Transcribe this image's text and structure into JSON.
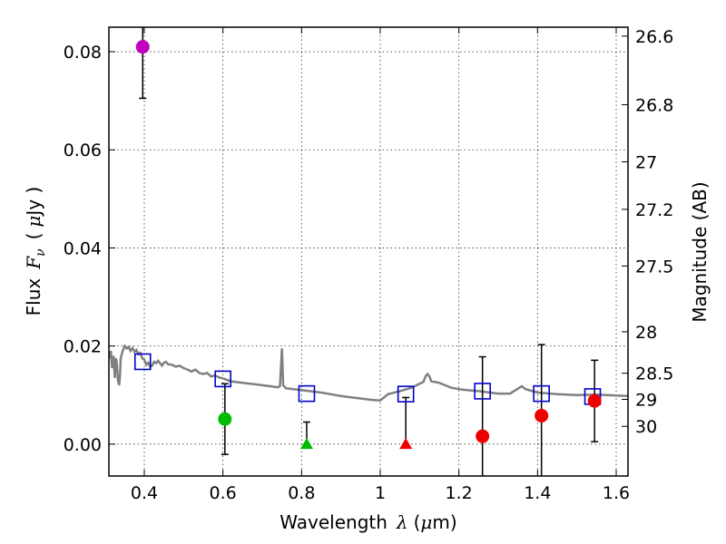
{
  "chart_data": {
    "type": "scatter",
    "xlabel": "Wavelength",
    "xlabel_symbol": "λ",
    "xlabel_unit_open": "(",
    "xlabel_unit_mu": "μ",
    "xlabel_unit_rest": "m)",
    "ylabel": "Flux",
    "ylabel_symbol": "F",
    "ylabel_subscript": "ν",
    "ylabel_unit_open": "(",
    "ylabel_unit_mu": "μ",
    "ylabel_unit_rest": "Jy )",
    "y2label": "Magnitude (AB)",
    "xlim": [
      0.31,
      1.63
    ],
    "ylim": [
      -0.0065,
      0.085
    ],
    "grid": true,
    "xticks": [
      {
        "value": 0.4,
        "label": "0.4"
      },
      {
        "value": 0.6,
        "label": "0.6"
      },
      {
        "value": 0.8,
        "label": "0.8"
      },
      {
        "value": 1.0,
        "label": "1"
      },
      {
        "value": 1.2,
        "label": "1.2"
      },
      {
        "value": 1.4,
        "label": "1.4"
      },
      {
        "value": 1.6,
        "label": "1.6"
      }
    ],
    "yticks": [
      {
        "value": 0.0,
        "label": "0.00"
      },
      {
        "value": 0.02,
        "label": "0.02"
      },
      {
        "value": 0.04,
        "label": "0.04"
      },
      {
        "value": 0.06,
        "label": "0.06"
      },
      {
        "value": 0.08,
        "label": "0.08"
      }
    ],
    "y2ticks": [
      {
        "mag": 26.6,
        "label": "26.6"
      },
      {
        "mag": 26.8,
        "label": "26.8"
      },
      {
        "mag": 27.0,
        "label": "27"
      },
      {
        "mag": 27.2,
        "label": "27.2"
      },
      {
        "mag": 27.5,
        "label": "27.5"
      },
      {
        "mag": 28.0,
        "label": "28"
      },
      {
        "mag": 28.5,
        "label": "28.5"
      },
      {
        "mag": 29.0,
        "label": "29"
      },
      {
        "mag": 30.0,
        "label": "30"
      }
    ],
    "model_spectrum": {
      "name": "model SED",
      "color": "#808080",
      "points": [
        [
          0.31,
          0.0175
        ],
        [
          0.315,
          0.019
        ],
        [
          0.318,
          0.0155
        ],
        [
          0.322,
          0.018
        ],
        [
          0.325,
          0.0135
        ],
        [
          0.328,
          0.0175
        ],
        [
          0.33,
          0.0165
        ],
        [
          0.333,
          0.013
        ],
        [
          0.336,
          0.012
        ],
        [
          0.338,
          0.0135
        ],
        [
          0.34,
          0.0175
        ],
        [
          0.345,
          0.019
        ],
        [
          0.35,
          0.02
        ],
        [
          0.355,
          0.0195
        ],
        [
          0.36,
          0.0198
        ],
        [
          0.365,
          0.019
        ],
        [
          0.37,
          0.0196
        ],
        [
          0.375,
          0.0188
        ],
        [
          0.38,
          0.0192
        ],
        [
          0.385,
          0.0183
        ],
        [
          0.39,
          0.0186
        ],
        [
          0.395,
          0.0175
        ],
        [
          0.4,
          0.0172
        ],
        [
          0.405,
          0.0162
        ],
        [
          0.41,
          0.0166
        ],
        [
          0.415,
          0.0158
        ],
        [
          0.42,
          0.016
        ],
        [
          0.425,
          0.0168
        ],
        [
          0.43,
          0.0165
        ],
        [
          0.435,
          0.017
        ],
        [
          0.44,
          0.0165
        ],
        [
          0.445,
          0.016
        ],
        [
          0.45,
          0.0166
        ],
        [
          0.455,
          0.0168
        ],
        [
          0.46,
          0.0163
        ],
        [
          0.47,
          0.0162
        ],
        [
          0.48,
          0.0158
        ],
        [
          0.49,
          0.016
        ],
        [
          0.5,
          0.0155
        ],
        [
          0.51,
          0.0152
        ],
        [
          0.52,
          0.0148
        ],
        [
          0.53,
          0.0152
        ],
        [
          0.54,
          0.0145
        ],
        [
          0.55,
          0.0143
        ],
        [
          0.56,
          0.0145
        ],
        [
          0.57,
          0.0138
        ],
        [
          0.58,
          0.014
        ],
        [
          0.59,
          0.0136
        ],
        [
          0.6,
          0.0134
        ],
        [
          0.62,
          0.0128
        ],
        [
          0.65,
          0.0125
        ],
        [
          0.68,
          0.0122
        ],
        [
          0.7,
          0.012
        ],
        [
          0.72,
          0.0118
        ],
        [
          0.74,
          0.0116
        ],
        [
          0.745,
          0.0118
        ],
        [
          0.75,
          0.0195
        ],
        [
          0.753,
          0.012
        ],
        [
          0.76,
          0.0114
        ],
        [
          0.78,
          0.0112
        ],
        [
          0.8,
          0.011
        ],
        [
          0.85,
          0.0105
        ],
        [
          0.9,
          0.0098
        ],
        [
          0.95,
          0.0093
        ],
        [
          0.98,
          0.009
        ],
        [
          1.0,
          0.0089
        ],
        [
          1.02,
          0.0102
        ],
        [
          1.05,
          0.0108
        ],
        [
          1.08,
          0.0115
        ],
        [
          1.1,
          0.0123
        ],
        [
          1.11,
          0.0127
        ],
        [
          1.115,
          0.0138
        ],
        [
          1.12,
          0.0143
        ],
        [
          1.125,
          0.0138
        ],
        [
          1.13,
          0.0128
        ],
        [
          1.15,
          0.0125
        ],
        [
          1.18,
          0.0115
        ],
        [
          1.2,
          0.0112
        ],
        [
          1.22,
          0.011
        ],
        [
          1.25,
          0.0108
        ],
        [
          1.28,
          0.0105
        ],
        [
          1.3,
          0.0103
        ],
        [
          1.33,
          0.0103
        ],
        [
          1.35,
          0.0113
        ],
        [
          1.36,
          0.0118
        ],
        [
          1.37,
          0.0112
        ],
        [
          1.4,
          0.0105
        ],
        [
          1.45,
          0.0102
        ],
        [
          1.5,
          0.01
        ],
        [
          1.55,
          0.0101
        ],
        [
          1.6,
          0.0099
        ],
        [
          1.63,
          0.0098
        ]
      ]
    },
    "series": [
      {
        "name": "model photometry",
        "marker": "open-square",
        "color": "#0000cc",
        "points": [
          {
            "x": 0.396,
            "y": 0.0168
          },
          {
            "x": 0.6,
            "y": 0.0133
          },
          {
            "x": 0.813,
            "y": 0.0103
          },
          {
            "x": 1.065,
            "y": 0.0102
          },
          {
            "x": 1.26,
            "y": 0.0108
          },
          {
            "x": 1.41,
            "y": 0.0103
          },
          {
            "x": 1.54,
            "y": 0.0097
          }
        ]
      },
      {
        "name": "observed photometry",
        "marker": "mixed",
        "points": [
          {
            "x": 0.396,
            "y": 0.081,
            "err": 0.0105,
            "color": "#bf00bf",
            "marker": "circle"
          },
          {
            "x": 0.605,
            "y": 0.0051,
            "err": 0.0072,
            "color": "#00bb00",
            "marker": "circle"
          },
          {
            "x": 0.813,
            "y": 0.0,
            "err_up": 0.0045,
            "color": "#00bb00",
            "marker": "triangle"
          },
          {
            "x": 1.065,
            "y": 0.0,
            "err_up": 0.0095,
            "color": "#ee0000",
            "marker": "triangle"
          },
          {
            "x": 1.26,
            "y": 0.0016,
            "err": 0.0162,
            "color": "#ee0000",
            "marker": "circle"
          },
          {
            "x": 1.41,
            "y": 0.0058,
            "err": 0.0145,
            "color": "#ee0000",
            "marker": "circle"
          },
          {
            "x": 1.545,
            "y": 0.0088,
            "err": 0.0083,
            "color": "#ee0000",
            "marker": "circle"
          }
        ]
      }
    ]
  }
}
